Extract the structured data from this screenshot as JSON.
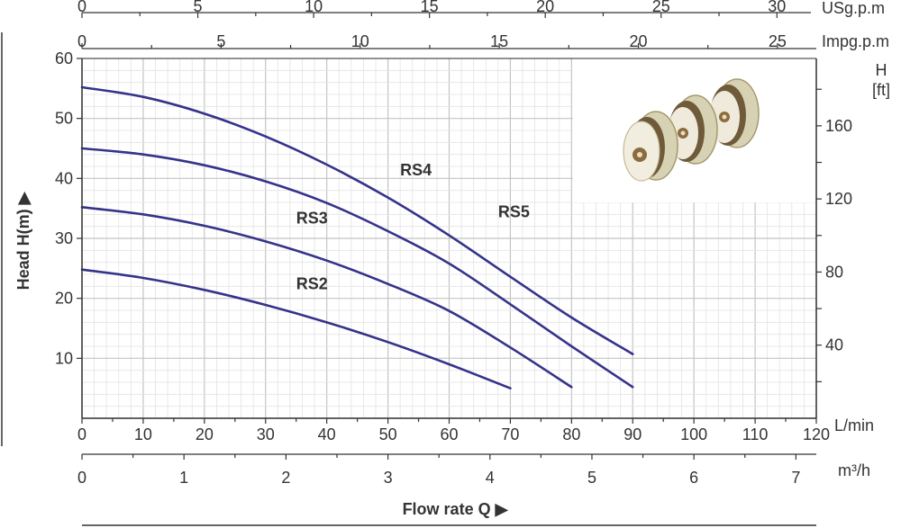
{
  "chart_data": {
    "type": "line",
    "title": "",
    "xlabel": "Flow rate Q",
    "ylabel": "Head H(m)",
    "x_unit": "L/min",
    "xlim": [
      0,
      120
    ],
    "ylim": [
      0,
      60
    ],
    "x_ticks": [
      0,
      10,
      20,
      30,
      40,
      50,
      60,
      70,
      80,
      90,
      100,
      110,
      120
    ],
    "y_ticks": [
      10,
      20,
      30,
      40,
      50,
      60
    ],
    "grid": true,
    "secondary_axes": {
      "us_gpm": {
        "label": "USg.p.m",
        "ticks": [
          0,
          5,
          10,
          15,
          20,
          25,
          30
        ]
      },
      "imp_gpm": {
        "label": "Impg.p.m",
        "ticks": [
          0,
          5,
          10,
          15,
          20,
          25
        ]
      },
      "m3h": {
        "label": "m³/h",
        "ticks": [
          0,
          1,
          2,
          3,
          4,
          5,
          6,
          7
        ]
      },
      "head_ft": {
        "label_line1": "H",
        "label_line2": "[ft]",
        "ticks": [
          40,
          80,
          120,
          160
        ]
      }
    },
    "series": [
      {
        "name": "RS2",
        "color": "#34338a",
        "label_at": [
          70,
          21.5
        ],
        "points": [
          [
            0,
            24.8
          ],
          [
            10,
            23.4
          ],
          [
            20,
            21.4
          ],
          [
            30,
            18.9
          ],
          [
            40,
            16.0
          ],
          [
            50,
            12.7
          ],
          [
            60,
            9.0
          ],
          [
            70,
            5.0
          ]
        ]
      },
      {
        "name": "RS3",
        "color": "#34338a",
        "label_at": [
          70,
          32.5
        ],
        "points": [
          [
            0,
            35.2
          ],
          [
            10,
            34.0
          ],
          [
            20,
            32.1
          ],
          [
            30,
            29.5
          ],
          [
            40,
            26.3
          ],
          [
            50,
            22.4
          ],
          [
            60,
            17.9
          ],
          [
            70,
            11.8
          ],
          [
            80,
            5.2
          ]
        ]
      },
      {
        "name": "RS4",
        "color": "#34338a",
        "label_at": [
          104,
          40.5
        ],
        "points": [
          [
            0,
            45.0
          ],
          [
            10,
            44.0
          ],
          [
            20,
            42.2
          ],
          [
            30,
            39.5
          ],
          [
            40,
            35.9
          ],
          [
            50,
            31.2
          ],
          [
            60,
            25.8
          ],
          [
            70,
            19.0
          ],
          [
            80,
            12.0
          ],
          [
            90,
            5.2
          ]
        ]
      },
      {
        "name": "RS5",
        "color": "#34338a",
        "label_at": [
          136,
          33.5
        ],
        "points": [
          [
            0,
            55.2
          ],
          [
            10,
            53.6
          ],
          [
            20,
            50.8
          ],
          [
            30,
            47.0
          ],
          [
            40,
            42.3
          ],
          [
            50,
            36.8
          ],
          [
            60,
            30.5
          ],
          [
            70,
            23.6
          ],
          [
            80,
            16.8
          ],
          [
            90,
            10.7
          ]
        ]
      }
    ]
  },
  "colors": {
    "curve": "#34338a",
    "grid_major": "#c4c4c4",
    "grid_minor": "#e3e3e3",
    "axis": "#333333",
    "inset_photo": "#ffffff"
  }
}
